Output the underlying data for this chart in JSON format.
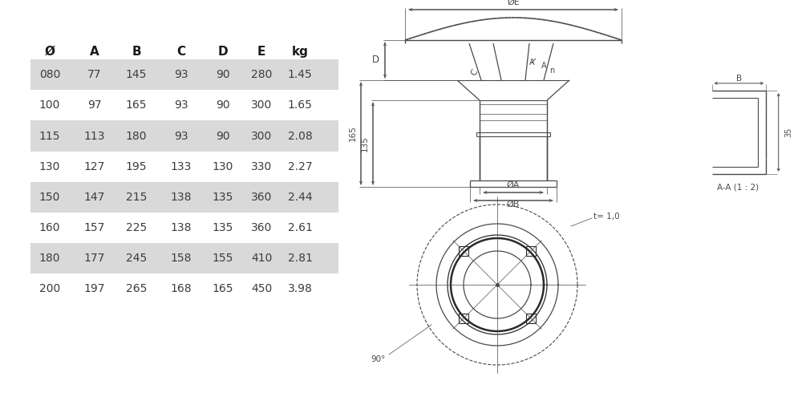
{
  "table_headers": [
    "Ø",
    "A",
    "B",
    "C",
    "D",
    "E",
    "kg"
  ],
  "table_data": [
    [
      "080",
      "77",
      "145",
      "93",
      "90",
      "280",
      "1.45"
    ],
    [
      "100",
      "97",
      "165",
      "93",
      "90",
      "300",
      "1.65"
    ],
    [
      "115",
      "113",
      "180",
      "93",
      "90",
      "300",
      "2.08"
    ],
    [
      "130",
      "127",
      "195",
      "133",
      "130",
      "330",
      "2.27"
    ],
    [
      "150",
      "147",
      "215",
      "138",
      "135",
      "360",
      "2.44"
    ],
    [
      "160",
      "157",
      "225",
      "138",
      "135",
      "360",
      "2.61"
    ],
    [
      "180",
      "177",
      "245",
      "158",
      "155",
      "410",
      "2.81"
    ],
    [
      "200",
      "197",
      "265",
      "168",
      "165",
      "450",
      "3.98"
    ]
  ],
  "shaded_rows": [
    0,
    2,
    4,
    6
  ],
  "row_bg_shaded": "#d9d9d9",
  "row_bg_white": "#ffffff",
  "text_color": "#3c3c3c",
  "header_text_color": "#1a1a1a",
  "bg_color": "#ffffff",
  "line_color": "#4a4a4a",
  "dim_color": "#4a4a4a"
}
